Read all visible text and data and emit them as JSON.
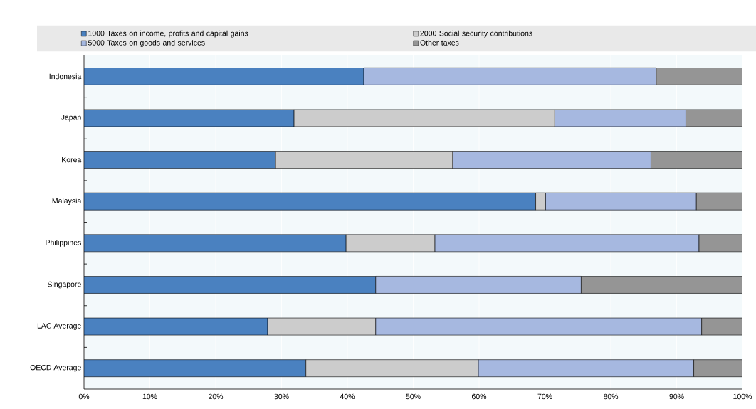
{
  "chart_data": {
    "type": "bar",
    "orientation": "horizontal",
    "stacked": true,
    "categories": [
      "Indonesia",
      "Japan",
      "Korea",
      "Malaysia",
      "Philippines",
      "Singapore",
      "LAC Average",
      "OECD Average"
    ],
    "series": [
      {
        "name": "1000 Taxes on income, profits and capital gains",
        "color": "#4a81c0",
        "values": [
          42.5,
          31.9,
          29.1,
          68.6,
          39.8,
          44.3,
          27.9,
          33.7
        ]
      },
      {
        "name": "2000 Social security contributions",
        "color": "#cccccc",
        "values": [
          null,
          39.6,
          26.9,
          1.5,
          13.5,
          null,
          16.4,
          26.2
        ]
      },
      {
        "name": "5000 Taxes on goods and services",
        "color": "#a6b8e0",
        "values": [
          44.4,
          19.9,
          30.1,
          22.9,
          40.1,
          31.2,
          49.5,
          32.7
        ]
      },
      {
        "name": "Other taxes",
        "color": "#959595",
        "values": [
          13.1,
          8.6,
          13.9,
          7.0,
          6.6,
          24.5,
          6.2,
          7.4
        ]
      }
    ],
    "xlim": [
      0,
      100
    ],
    "xticks": [
      {
        "value": 0,
        "label": "0%"
      },
      {
        "value": 10,
        "label": "10%"
      },
      {
        "value": 20,
        "label": "20%"
      },
      {
        "value": 30,
        "label": "30%"
      },
      {
        "value": 40,
        "label": "40%"
      },
      {
        "value": 50,
        "label": "50%"
      },
      {
        "value": 60,
        "label": "60%"
      },
      {
        "value": 70,
        "label": "70%"
      },
      {
        "value": 80,
        "label": "80%"
      },
      {
        "value": 90,
        "label": "90%"
      },
      {
        "value": 100,
        "label": "100%"
      }
    ],
    "grid": "x",
    "legend": "top"
  }
}
